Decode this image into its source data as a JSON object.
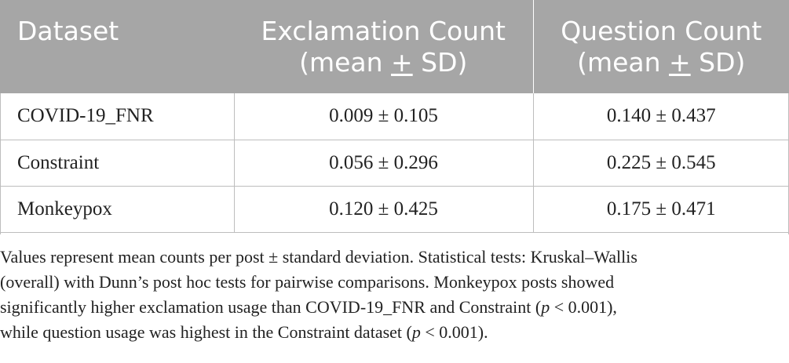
{
  "table": {
    "headers": {
      "dataset": "Dataset",
      "exclamation_line1": "Exclamation Count",
      "exclamation_line2_pre": "(mean ",
      "exclamation_line2_pm": "+",
      "exclamation_line2_post": " SD)",
      "question_line1": "Question Count",
      "question_line2_pre": "(mean ",
      "question_line2_pm": "+",
      "question_line2_post": " SD)"
    },
    "rows": [
      {
        "dataset": "COVID-19_FNR",
        "exclamation": "0.009 ± 0.105",
        "question": "0.140 ± 0.437"
      },
      {
        "dataset": "Constraint",
        "exclamation": "0.056 ± 0.296",
        "question": "0.225 ± 0.545"
      },
      {
        "dataset": "Monkeypox",
        "exclamation": "0.120 ± 0.425",
        "question": "0.175 ± 0.471"
      }
    ]
  },
  "footnote": {
    "line1": "Values represent mean counts per post ± standard deviation. Statistical tests: Kruskal–Wallis",
    "line2": "(overall) with Dunn’s post hoc tests for pairwise comparisons. Monkeypox posts showed",
    "line3_pre": "significantly higher exclamation usage than COVID-19_FNR and Constraint (",
    "line3_p": "p",
    "line3_post": " < 0.001),",
    "line4_pre": "while question usage was highest in the Constraint dataset (",
    "line4_p": "p",
    "line4_post": " < 0.001)."
  },
  "colors": {
    "header_bg": "#a6a6a6",
    "header_text": "#ffffff",
    "body_text": "#222222",
    "grid_lines": "#bdbdbd"
  }
}
